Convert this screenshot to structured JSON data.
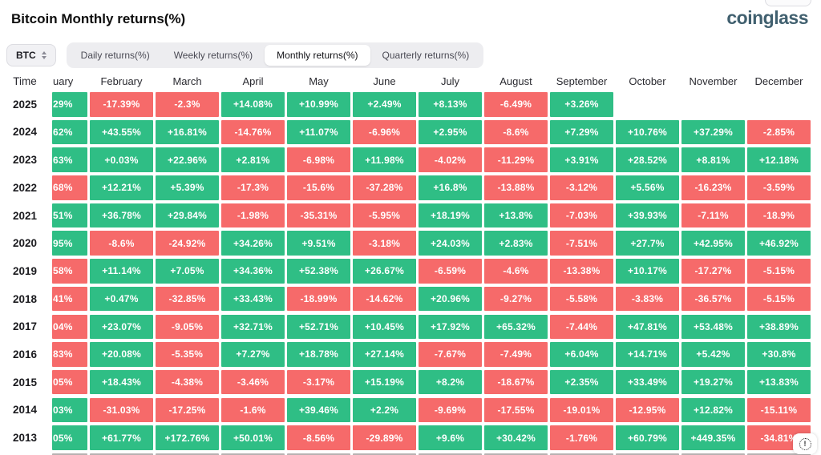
{
  "header": {
    "title": "Bitcoin Monthly returns(%)",
    "logo": "coinglass"
  },
  "controls": {
    "symbol": "BTC",
    "tabs": [
      {
        "label": "Daily returns(%)",
        "active": false
      },
      {
        "label": "Weekly returns(%)",
        "active": false
      },
      {
        "label": "Monthly returns(%)",
        "active": true
      },
      {
        "label": "Quarterly returns(%)",
        "active": false
      }
    ]
  },
  "colors": {
    "positive": "#2fbe85",
    "negative": "#f66a6a",
    "partial_row_gray": "#b7b2b2"
  },
  "table": {
    "time_header": "Time",
    "january_partial_header": "uary",
    "months": [
      "February",
      "March",
      "April",
      "May",
      "June",
      "July",
      "August",
      "September",
      "October",
      "November",
      "December"
    ],
    "rows": [
      {
        "year": "2025",
        "jan": {
          "text": "29%",
          "positive": true
        },
        "cells": [
          "-17.39%",
          "-2.3%",
          "+14.08%",
          "+10.99%",
          "+2.49%",
          "+8.13%",
          "-6.49%",
          "+3.26%",
          null,
          null,
          null
        ]
      },
      {
        "year": "2024",
        "jan": {
          "text": "62%",
          "positive": true
        },
        "cells": [
          "+43.55%",
          "+16.81%",
          "-14.76%",
          "+11.07%",
          "-6.96%",
          "+2.95%",
          "-8.6%",
          "+7.29%",
          "+10.76%",
          "+37.29%",
          "-2.85%"
        ]
      },
      {
        "year": "2023",
        "jan": {
          "text": "63%",
          "positive": true
        },
        "cells": [
          "+0.03%",
          "+22.96%",
          "+2.81%",
          "-6.98%",
          "+11.98%",
          "-4.02%",
          "-11.29%",
          "+3.91%",
          "+28.52%",
          "+8.81%",
          "+12.18%"
        ]
      },
      {
        "year": "2022",
        "jan": {
          "text": "68%",
          "positive": false
        },
        "cells": [
          "+12.21%",
          "+5.39%",
          "-17.3%",
          "-15.6%",
          "-37.28%",
          "+16.8%",
          "-13.88%",
          "-3.12%",
          "+5.56%",
          "-16.23%",
          "-3.59%"
        ]
      },
      {
        "year": "2021",
        "jan": {
          "text": "51%",
          "positive": true
        },
        "cells": [
          "+36.78%",
          "+29.84%",
          "-1.98%",
          "-35.31%",
          "-5.95%",
          "+18.19%",
          "+13.8%",
          "-7.03%",
          "+39.93%",
          "-7.11%",
          "-18.9%"
        ]
      },
      {
        "year": "2020",
        "jan": {
          "text": "95%",
          "positive": true
        },
        "cells": [
          "-8.6%",
          "-24.92%",
          "+34.26%",
          "+9.51%",
          "-3.18%",
          "+24.03%",
          "+2.83%",
          "-7.51%",
          "+27.7%",
          "+42.95%",
          "+46.92%"
        ]
      },
      {
        "year": "2019",
        "jan": {
          "text": "58%",
          "positive": false
        },
        "cells": [
          "+11.14%",
          "+7.05%",
          "+34.36%",
          "+52.38%",
          "+26.67%",
          "-6.59%",
          "-4.6%",
          "-13.38%",
          "+10.17%",
          "-17.27%",
          "-5.15%"
        ]
      },
      {
        "year": "2018",
        "jan": {
          "text": "41%",
          "positive": false
        },
        "cells": [
          "+0.47%",
          "-32.85%",
          "+33.43%",
          "-18.99%",
          "-14.62%",
          "+20.96%",
          "-9.27%",
          "-5.58%",
          "-3.83%",
          "-36.57%",
          "-5.15%"
        ]
      },
      {
        "year": "2017",
        "jan": {
          "text": "04%",
          "positive": false
        },
        "cells": [
          "+23.07%",
          "-9.05%",
          "+32.71%",
          "+52.71%",
          "+10.45%",
          "+17.92%",
          "+65.32%",
          "-7.44%",
          "+47.81%",
          "+53.48%",
          "+38.89%"
        ]
      },
      {
        "year": "2016",
        "jan": {
          "text": "83%",
          "positive": false
        },
        "cells": [
          "+20.08%",
          "-5.35%",
          "+7.27%",
          "+18.78%",
          "+27.14%",
          "-7.67%",
          "-7.49%",
          "+6.04%",
          "+14.71%",
          "+5.42%",
          "+30.8%"
        ]
      },
      {
        "year": "2015",
        "jan": {
          "text": "05%",
          "positive": false
        },
        "cells": [
          "+18.43%",
          "-4.38%",
          "-3.46%",
          "-3.17%",
          "+15.19%",
          "+8.2%",
          "-18.67%",
          "+2.35%",
          "+33.49%",
          "+19.27%",
          "+13.83%"
        ]
      },
      {
        "year": "2014",
        "jan": {
          "text": "03%",
          "positive": true
        },
        "cells": [
          "-31.03%",
          "-17.25%",
          "-1.6%",
          "+39.46%",
          "+2.2%",
          "-9.69%",
          "-17.55%",
          "-19.01%",
          "-12.95%",
          "+12.82%",
          "-15.11%"
        ]
      },
      {
        "year": "2013",
        "jan": {
          "text": "05%",
          "positive": true
        },
        "cells": [
          "+61.77%",
          "+172.76%",
          "+50.01%",
          "-8.56%",
          "-29.89%",
          "+9.6%",
          "+30.42%",
          "-1.76%",
          "+60.79%",
          "+449.35%",
          "-34.81%"
        ]
      }
    ],
    "partial_bottom_row": true
  },
  "footer": {
    "info_glyph": "!"
  }
}
